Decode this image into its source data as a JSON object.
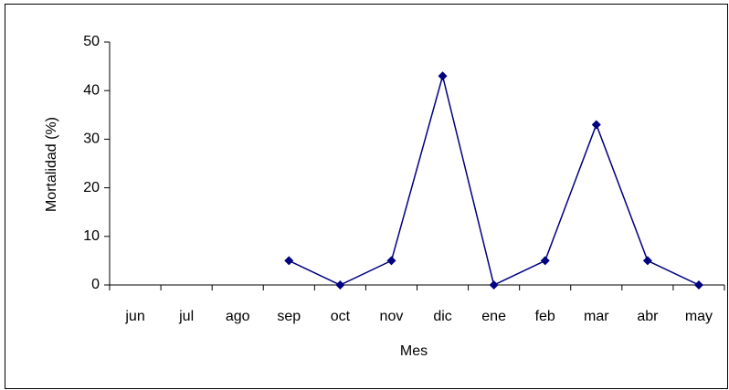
{
  "chart_data": {
    "type": "line",
    "x_label": "Mes",
    "y_label": "Mortalidad (%)",
    "categories": [
      "jun",
      "jul",
      "ago",
      "sep",
      "oct",
      "nov",
      "dic",
      "ene",
      "feb",
      "mar",
      "abr",
      "may"
    ],
    "values": [
      null,
      null,
      null,
      5,
      0,
      5,
      43,
      0,
      5,
      33,
      5,
      0
    ],
    "color": "#000080",
    "marker": "diamond",
    "ylim": [
      0,
      50
    ],
    "yticks": [
      0,
      10,
      20,
      30,
      40,
      50
    ],
    "grid": false
  }
}
